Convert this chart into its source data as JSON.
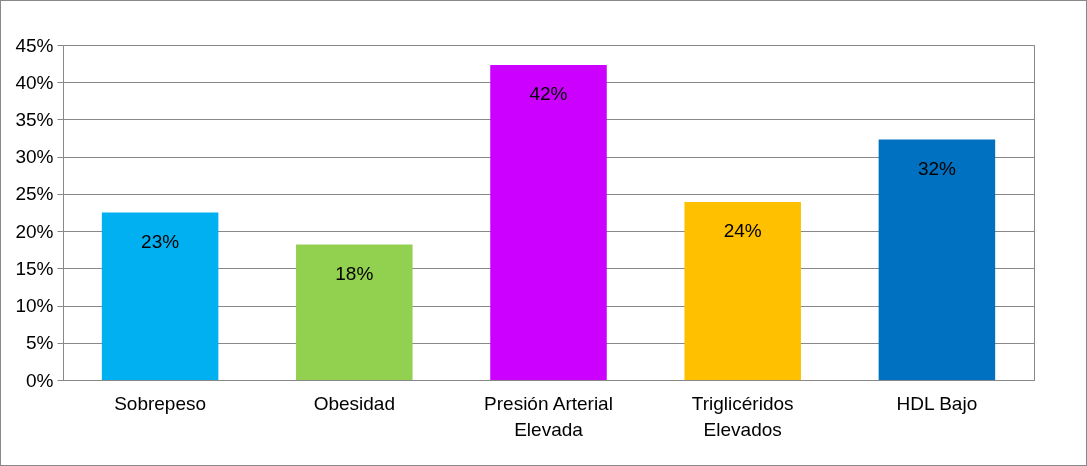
{
  "chart_data": {
    "type": "bar",
    "categories": [
      "Sobrepeso",
      "Obesidad",
      "Presión Arterial Elevada",
      "Triglicéridos Elevados",
      "HDL Bajo"
    ],
    "values": [
      22.5,
      18.2,
      42.3,
      23.9,
      32.3
    ],
    "value_labels": [
      "23%",
      "18%",
      "42%",
      "24%",
      "32%"
    ],
    "colors": [
      "#00b0f0",
      "#92d050",
      "#cc00ff",
      "#ffc000",
      "#0070c0"
    ],
    "ylim": [
      0,
      45
    ],
    "yticks": [
      {
        "value": 0,
        "label": "0%"
      },
      {
        "value": 5,
        "label": "5%"
      },
      {
        "value": 10,
        "label": "10%"
      },
      {
        "value": 15,
        "label": "15%"
      },
      {
        "value": 20,
        "label": "20%"
      },
      {
        "value": 25,
        "label": "25%"
      },
      {
        "value": 30,
        "label": "30%"
      },
      {
        "value": 35,
        "label": "35%"
      },
      {
        "value": 40,
        "label": "40%"
      },
      {
        "value": 45,
        "label": "45%"
      }
    ],
    "grid": "y"
  }
}
